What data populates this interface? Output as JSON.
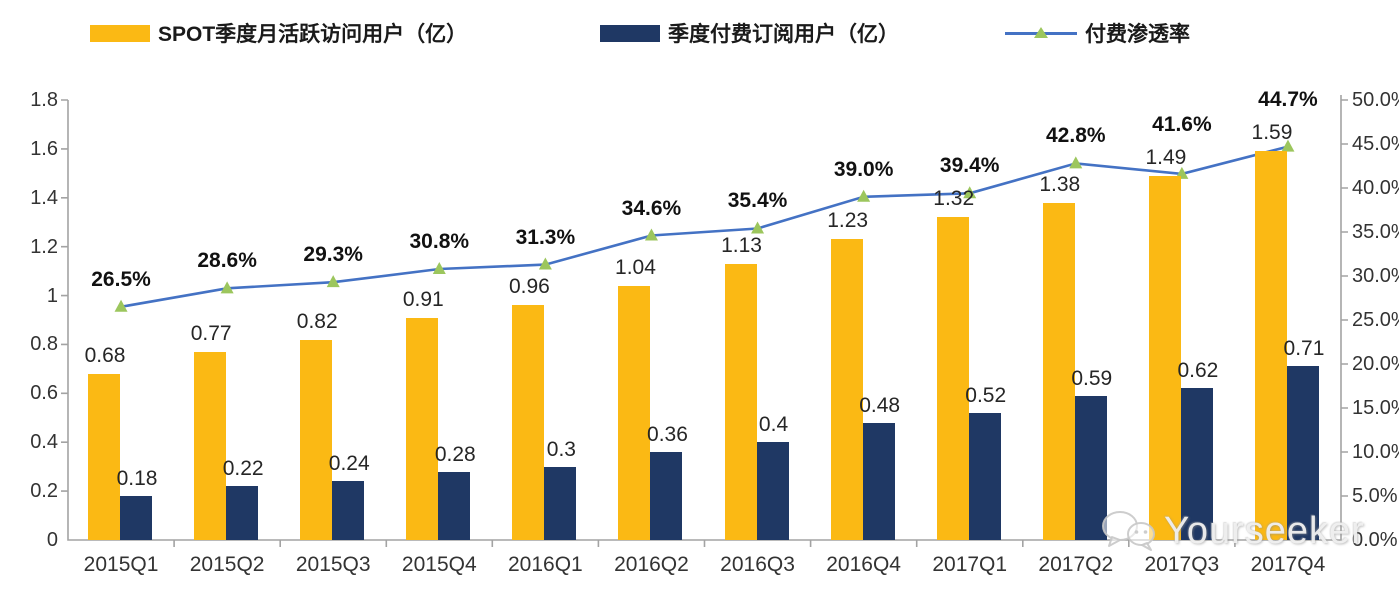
{
  "legend": {
    "mau_label": "SPOT季度月活跃访问用户（亿）",
    "subs_label": "季度付费订阅用户（亿）",
    "penetration_label": "付费渗透率"
  },
  "colors": {
    "mau_bar": "#FBB914",
    "subs_bar": "#1F3864",
    "line": "#4472C4",
    "marker": "#9CC65D",
    "axis": "#A3A3A3"
  },
  "watermark": {
    "text": "Yourseeker"
  },
  "chart_data": {
    "type": "bar+line combo",
    "title": "",
    "categories": [
      "2015Q1",
      "2015Q2",
      "2015Q3",
      "2015Q4",
      "2016Q1",
      "2016Q2",
      "2016Q3",
      "2016Q4",
      "2017Q1",
      "2017Q2",
      "2017Q3",
      "2017Q4"
    ],
    "series": [
      {
        "name": "SPOT季度月活跃访问用户（亿）",
        "type": "bar",
        "axis": "left",
        "values": [
          0.68,
          0.77,
          0.82,
          0.91,
          0.96,
          1.04,
          1.13,
          1.23,
          1.32,
          1.38,
          1.49,
          1.59
        ]
      },
      {
        "name": "季度付费订阅用户（亿）",
        "type": "bar",
        "axis": "left",
        "values": [
          0.18,
          0.22,
          0.24,
          0.28,
          0.3,
          0.36,
          0.4,
          0.48,
          0.52,
          0.59,
          0.62,
          0.71
        ]
      },
      {
        "name": "付费渗透率",
        "type": "line",
        "axis": "right",
        "values": [
          26.5,
          28.6,
          29.3,
          30.8,
          31.3,
          34.6,
          35.4,
          39.0,
          39.4,
          42.8,
          41.6,
          44.7
        ],
        "unit": "%"
      }
    ],
    "left_axis": {
      "min": 0,
      "max": 1.8,
      "step": 0.2
    },
    "right_axis": {
      "min": 0,
      "max": 50,
      "step": 5,
      "format": "one-decimal-percent"
    },
    "grid": false,
    "legend_position": "top",
    "data_labels": true
  }
}
